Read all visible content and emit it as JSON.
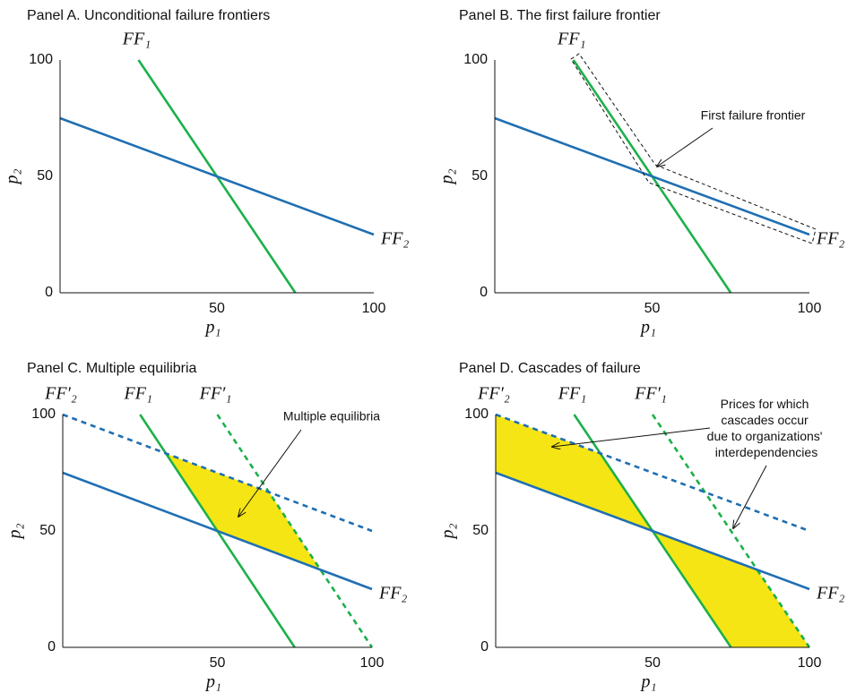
{
  "chart_data": [
    {
      "type": "line",
      "title": "Panel A. Unconditional failure frontiers",
      "x_label": "p₁",
      "y_label": "p₂",
      "xlim": [
        0,
        100
      ],
      "ylim": [
        0,
        100
      ],
      "xticks": [
        50,
        100
      ],
      "yticks": [
        0,
        50,
        100
      ],
      "series": [
        {
          "name": "FF₁",
          "color": "#1db04b",
          "dashed": false,
          "x": [
            25,
            75
          ],
          "values": [
            100,
            0
          ]
        },
        {
          "name": "FF₂",
          "color": "#1f6fb2",
          "dashed": false,
          "x": [
            0,
            100
          ],
          "values": [
            75,
            25
          ]
        }
      ]
    },
    {
      "type": "line",
      "title": "Panel B. The first failure frontier",
      "x_label": "p₁",
      "y_label": "p₂",
      "xlim": [
        0,
        100
      ],
      "ylim": [
        0,
        100
      ],
      "xticks": [
        50,
        100
      ],
      "yticks": [
        0,
        50,
        100
      ],
      "annotation": "First failure frontier",
      "series": [
        {
          "name": "FF₁",
          "color": "#1db04b",
          "dashed": false,
          "x": [
            25,
            75
          ],
          "values": [
            100,
            0
          ]
        },
        {
          "name": "FF₂",
          "color": "#1f6fb2",
          "dashed": false,
          "x": [
            0,
            100
          ],
          "values": [
            75,
            25
          ]
        }
      ]
    },
    {
      "type": "line",
      "title": "Panel C. Multiple equilibria",
      "x_label": "p₁",
      "y_label": "p₂",
      "xlim": [
        0,
        100
      ],
      "ylim": [
        0,
        100
      ],
      "xticks": [
        50,
        100
      ],
      "yticks": [
        0,
        50,
        100
      ],
      "annotation": "Multiple equilibria",
      "regions": [
        {
          "color": "#f5e514",
          "x": [
            33.3,
            66.7,
            83.3,
            50
          ],
          "y": [
            83.3,
            66.7,
            33.3,
            50
          ]
        }
      ],
      "series": [
        {
          "name": "FF₁",
          "color": "#1db04b",
          "dashed": false,
          "x": [
            25,
            75
          ],
          "values": [
            100,
            0
          ]
        },
        {
          "name": "FF′₁",
          "color": "#1db04b",
          "dashed": true,
          "x": [
            50,
            100
          ],
          "values": [
            100,
            0
          ]
        },
        {
          "name": "FF′₂",
          "color": "#1f6fb2",
          "dashed": true,
          "x": [
            0,
            100
          ],
          "values": [
            100,
            50
          ]
        },
        {
          "name": "FF₂",
          "color": "#1f6fb2",
          "dashed": false,
          "x": [
            0,
            100
          ],
          "values": [
            75,
            25
          ]
        }
      ]
    },
    {
      "type": "line",
      "title": "Panel D. Cascades of failure",
      "x_label": "p₁",
      "y_label": "p₂",
      "xlim": [
        0,
        100
      ],
      "ylim": [
        0,
        100
      ],
      "xticks": [
        50,
        100
      ],
      "yticks": [
        0,
        50,
        100
      ],
      "annotation": [
        "Prices for which",
        "cascades occur",
        "due to organizations'",
        "interdependencies"
      ],
      "regions": [
        {
          "color": "#f5e514",
          "x": [
            0,
            33.3,
            50,
            0
          ],
          "y": [
            100,
            83.3,
            50,
            75
          ]
        },
        {
          "color": "#f5e514",
          "x": [
            50,
            83.3,
            100,
            75
          ],
          "y": [
            50,
            33.3,
            0,
            0
          ]
        }
      ],
      "series": [
        {
          "name": "FF₁",
          "color": "#1db04b",
          "dashed": false,
          "x": [
            25,
            75
          ],
          "values": [
            100,
            0
          ]
        },
        {
          "name": "FF′₁",
          "color": "#1db04b",
          "dashed": true,
          "x": [
            50,
            100
          ],
          "values": [
            100,
            0
          ]
        },
        {
          "name": "FF′₂",
          "color": "#1f6fb2",
          "dashed": true,
          "x": [
            0,
            100
          ],
          "values": [
            100,
            50
          ]
        },
        {
          "name": "FF₂",
          "color": "#1f6fb2",
          "dashed": false,
          "x": [
            0,
            100
          ],
          "values": [
            75,
            25
          ]
        }
      ]
    }
  ]
}
